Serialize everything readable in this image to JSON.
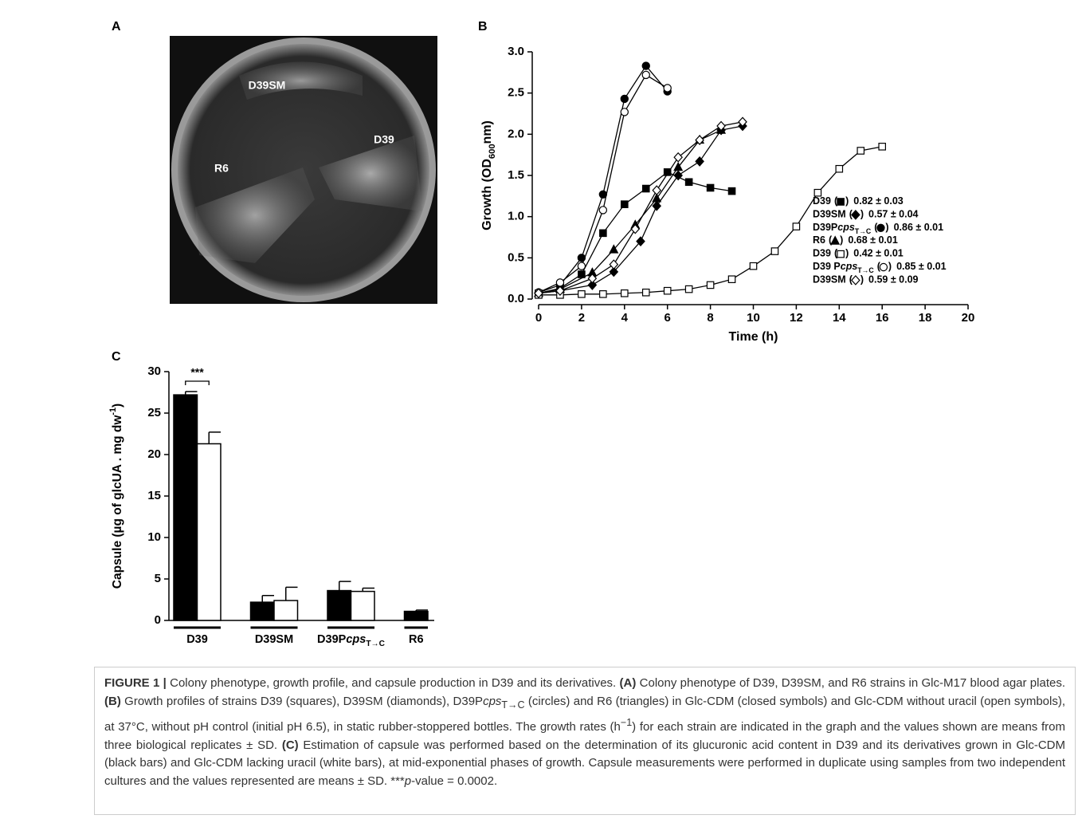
{
  "panel_labels": [
    "A",
    "B",
    "C"
  ],
  "plate_labels": [
    "D39SM",
    "D39",
    "R6"
  ],
  "chart_data": [
    {
      "type": "line",
      "xlabel": "Time (h)",
      "ylabel": [
        [
          "Growth (OD",
          ""
        ],
        [
          "600",
          "sub"
        ],
        [
          "nm)",
          ""
        ]
      ],
      "xlim": [
        0,
        20
      ],
      "xticks": [
        0,
        2,
        4,
        6,
        8,
        10,
        12,
        14,
        16,
        18,
        20
      ],
      "ylim": [
        0,
        3
      ],
      "yticks": [
        {
          "value": 0,
          "label": "0.0"
        },
        0.5,
        {
          "value": 1,
          "label": "1.0"
        },
        1.5,
        {
          "value": 2,
          "label": "2.0"
        },
        2.5,
        {
          "value": 3,
          "label": "3.0"
        }
      ],
      "legend_brackets": [
        "(",
        ")"
      ],
      "series": [
        {
          "name": [
            [
              "D39",
              ""
            ]
          ],
          "marker": "square",
          "filled": true,
          "color": "#000000",
          "rate": "0.82 ± 0.03",
          "x": [
            0,
            1,
            2,
            3,
            4,
            5,
            6,
            7,
            8,
            9
          ],
          "values": [
            0.07,
            0.13,
            0.3,
            0.8,
            1.15,
            1.34,
            1.54,
            1.42,
            1.35,
            1.31
          ]
        },
        {
          "name": [
            [
              "D39SM",
              ""
            ]
          ],
          "marker": "diamond",
          "filled": true,
          "color": "#000000",
          "rate": "0.57 ± 0.04",
          "x": [
            0,
            1,
            2.5,
            3.5,
            4.75,
            5.5,
            6.5,
            7.5,
            8.5,
            9.5
          ],
          "values": [
            0.07,
            0.1,
            0.17,
            0.33,
            0.7,
            1.13,
            1.5,
            1.67,
            2.05,
            2.1
          ]
        },
        {
          "name": [
            [
              "D39P",
              ""
            ],
            [
              "cps",
              "i"
            ],
            [
              "T→C",
              "sub"
            ]
          ],
          "marker": "circle",
          "filled": true,
          "color": "#000000",
          "rate": "0.86 ± 0.01",
          "x": [
            0,
            1,
            2,
            3,
            4,
            5,
            6
          ],
          "values": [
            0.08,
            0.17,
            0.5,
            1.27,
            2.43,
            2.83,
            2.52
          ]
        },
        {
          "name": [
            [
              "R6",
              ""
            ]
          ],
          "marker": "triangle",
          "filled": true,
          "color": "#000000",
          "rate": "0.68 ± 0.01",
          "x": [
            0,
            1,
            2.5,
            3.5,
            4.5,
            5.5,
            6.5,
            7.5,
            8.5
          ],
          "values": [
            0.07,
            0.12,
            0.32,
            0.6,
            0.9,
            1.22,
            1.6,
            1.93,
            2.05
          ]
        },
        {
          "name": [
            [
              "D39",
              ""
            ]
          ],
          "marker": "square",
          "filled": false,
          "color": "#000000",
          "rate": "0.42 ± 0.01",
          "x": [
            0,
            1,
            2,
            3,
            4,
            5,
            6,
            7,
            8,
            9,
            10,
            11,
            12,
            13,
            14,
            15,
            16
          ],
          "values": [
            0.05,
            0.05,
            0.06,
            0.06,
            0.07,
            0.08,
            0.1,
            0.12,
            0.17,
            0.24,
            0.4,
            0.58,
            0.88,
            1.29,
            1.58,
            1.8,
            1.85
          ]
        },
        {
          "name": [
            [
              "D39 P",
              ""
            ],
            [
              "cps",
              "i"
            ],
            [
              "T→C",
              "sub"
            ]
          ],
          "marker": "circle",
          "filled": false,
          "color": "#000000",
          "rate": "0.85 ± 0.01",
          "x": [
            0,
            1,
            2,
            3,
            4,
            5,
            6
          ],
          "values": [
            0.08,
            0.2,
            0.4,
            1.08,
            2.27,
            2.72,
            2.56
          ]
        },
        {
          "name": [
            [
              "D39SM",
              ""
            ]
          ],
          "marker": "diamond",
          "filled": false,
          "color": "#000000",
          "rate": "0.59 ± 0.09",
          "x": [
            0,
            1,
            2.5,
            3.5,
            4.5,
            5.5,
            6.5,
            7.5,
            8.5,
            9.5
          ],
          "values": [
            0.07,
            0.1,
            0.25,
            0.42,
            0.85,
            1.32,
            1.72,
            1.93,
            2.1,
            2.15
          ]
        }
      ]
    },
    {
      "type": "bar",
      "ylabel": [
        [
          "Capsule (µg of glcUA . mg dw",
          ""
        ],
        [
          "-1",
          "sup"
        ],
        [
          ")",
          ""
        ]
      ],
      "categories": [
        [
          [
            "D39",
            ""
          ]
        ],
        [
          [
            "D39SM",
            ""
          ]
        ],
        [
          [
            "D39P",
            ""
          ],
          [
            "cps",
            "i"
          ],
          [
            "T→C",
            "sub"
          ]
        ],
        [
          [
            "R6",
            ""
          ]
        ]
      ],
      "ylim": [
        0,
        30
      ],
      "yticks": [
        0,
        5,
        10,
        15,
        20,
        25,
        30
      ],
      "series": [
        {
          "color": "#000000",
          "values": [
            27.2,
            2.2,
            3.6,
            1.1
          ],
          "errors": [
            0.4,
            0.8,
            1.1,
            0.15
          ]
        },
        {
          "color": "#ffffff",
          "values": [
            21.3,
            2.4,
            3.5,
            null
          ],
          "errors": [
            1.4,
            1.6,
            0.4,
            null
          ]
        }
      ],
      "significance": "***"
    }
  ],
  "caption": [
    [
      "FIGURE 1 | ",
      "b"
    ],
    [
      "Colony phenotype, growth profile, and capsule production in D39 and its derivatives. ",
      ""
    ],
    [
      "(A)",
      "b"
    ],
    [
      " Colony phenotype of D39, D39SM, and R6 strains in Glc-M17 blood agar plates. ",
      ""
    ],
    [
      "(B)",
      "b"
    ],
    [
      " Growth profiles of strains D39 (squares), D39SM (diamonds), D39P",
      ""
    ],
    [
      "cps",
      "i"
    ],
    [
      "T→C",
      "sub"
    ],
    [
      " (circles) and R6 (triangles) in Glc-CDM (closed symbols) and Glc-CDM without uracil (open symbols), at 37°C, without pH control (initial pH 6.5), in static rubber-stoppered bottles. The growth rates (h",
      ""
    ],
    [
      "−1",
      "sup"
    ],
    [
      ") for each strain are indicated in the graph and the values shown are means from three biological replicates ± SD. ",
      ""
    ],
    [
      "(C)",
      "b"
    ],
    [
      " Estimation of capsule was performed based on the determination of its glucuronic acid content in D39 and its derivatives grown in Glc-CDM (black bars) and Glc-CDM lacking uracil (white bars), at mid-exponential phases of growth. Capsule measurements were performed in duplicate using samples from two independent cultures and the values represented are means ± SD. ***",
      ""
    ],
    [
      "p",
      "i"
    ],
    [
      "-value = 0.0002.",
      ""
    ]
  ]
}
